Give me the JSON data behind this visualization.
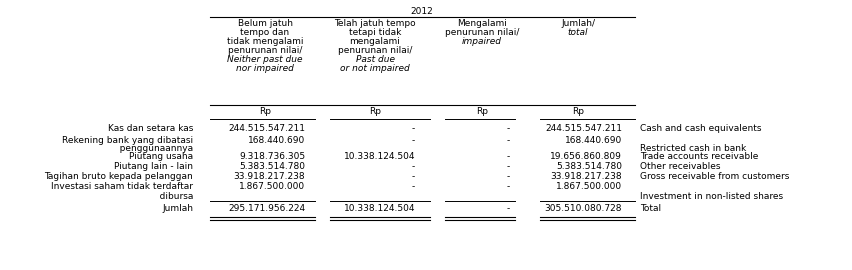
{
  "title": "2012",
  "col_headers": [
    "Belum jatuh\ntempo dan\ntidak mengalami\npenurunan nilai/\nNeither past due\nnor impaired",
    "Telah jatuh tempo\ntetapi tidak\nmengalami\npenurunan nilai/\nPast due\nor not impaired",
    "Mengalami\npenurunan nilai/\nimpaired",
    "Jumlah/\ntotal"
  ],
  "row_labels_id": [
    [
      "Kas dan setara kas"
    ],
    [
      "Rekening bank yang dibatasi",
      "   penggunaannya"
    ],
    [
      "Piutang usaha"
    ],
    [
      "Piutang lain - lain"
    ],
    [
      "Tagihan bruto kepada pelanggan"
    ],
    [
      "Investasi saham tidak terdaftar",
      "   dibursa"
    ],
    [
      "Jumlah"
    ]
  ],
  "row_labels_en": [
    "Cash and cash equivalents",
    "Restricted cash in bank",
    "Trade accounts receivable",
    "Other receivables",
    "Gross receivable from customers",
    "Investment in non-listed shares",
    "Total"
  ],
  "data": [
    [
      "244.515.547.211",
      "-",
      "-",
      "244.515.547.211"
    ],
    [
      "168.440.690",
      "-",
      "-",
      "168.440.690"
    ],
    [
      "9.318.736.305",
      "10.338.124.504",
      "-",
      "19.656.860.809"
    ],
    [
      "5.383.514.780",
      "-",
      "-",
      "5.383.514.780"
    ],
    [
      "33.918.217.238",
      "-",
      "-",
      "33.918.217.238"
    ],
    [
      "1.867.500.000",
      "-",
      "-",
      "1.867.500.000"
    ],
    [
      "295.171.956.224",
      "10.338.124.504",
      "-",
      "305.510.080.728"
    ]
  ],
  "bg_color": "#ffffff",
  "text_color": "#000000",
  "fontsize": 6.5,
  "italic_fontsize": 6.5
}
